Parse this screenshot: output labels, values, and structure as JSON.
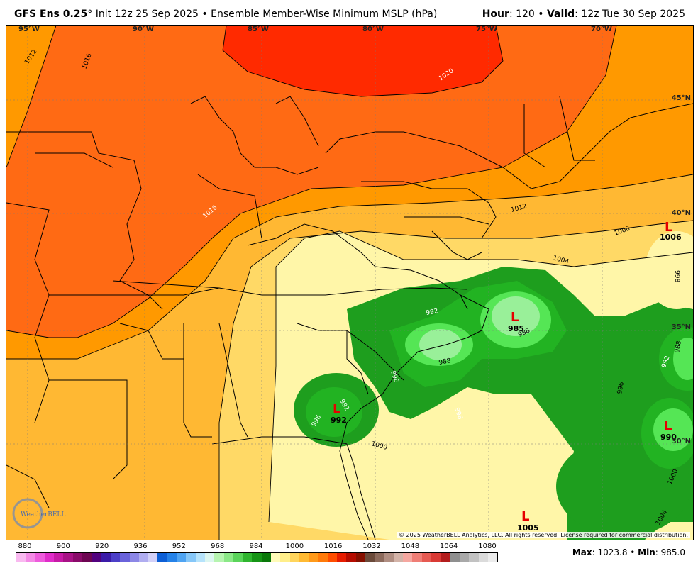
{
  "header": {
    "model": "GFS Ens 0.25",
    "degree_mark": "°",
    "init": " Init 12z 25 Sep 2025",
    "separator": " • ",
    "product": "Ensemble Member-Wise Minimum MSLP (hPa)",
    "hour_label": "Hour",
    "hour_value": ": 120 • ",
    "valid_label": "Valid",
    "valid_value": ": 12z Tue 30 Sep 2025"
  },
  "axes": {
    "longitudes": [
      "95°W",
      "90°W",
      "85°W",
      "80°W",
      "75°W",
      "70°W"
    ],
    "latitudes": [
      "45°N",
      "40°N",
      "35°N",
      "30°N"
    ]
  },
  "lows": [
    {
      "symbol": "L",
      "value": "1006"
    },
    {
      "symbol": "L",
      "value": "985"
    },
    {
      "symbol": "L",
      "value": "992"
    },
    {
      "symbol": "L",
      "value": "990"
    },
    {
      "symbol": "L",
      "value": "1005"
    }
  ],
  "contour_labels": [
    "1012",
    "1016",
    "1020",
    "1016",
    "1012",
    "1008",
    "1004",
    "1000",
    "996",
    "992",
    "988",
    "988",
    "996",
    "992",
    "996",
    "1000",
    "1004",
    "996",
    "988",
    "992",
    "998"
  ],
  "copyright": "© 2025 WeatherBELL Analytics, LLC. All rights reserved. License required for commercial distribution.",
  "logo_text": "WeatherBELL",
  "colorbar": {
    "labels": [
      "880",
      "900",
      "920",
      "936",
      "952",
      "968",
      "984",
      "1000",
      "1016",
      "1032",
      "1048",
      "1064",
      "1080"
    ],
    "colors": [
      "#f9b9f0",
      "#f48ae6",
      "#ee5bdc",
      "#e02cc9",
      "#c71aa6",
      "#a81286",
      "#8a0b6a",
      "#6d0652",
      "#52027e",
      "#3b1ba8",
      "#4c3fc8",
      "#6a63db",
      "#8c87e6",
      "#b0adf0",
      "#d2d0f8",
      "#0d5fd6",
      "#2582e8",
      "#4fa4f2",
      "#86c7f8",
      "#b6e3fb",
      "#dcf6f0",
      "#b6f4b0",
      "#8be887",
      "#5ad45a",
      "#2fb52f",
      "#169416",
      "#0a780a",
      "#fffbb8",
      "#ffee8a",
      "#ffd55c",
      "#ffba33",
      "#ff9a1a",
      "#ff7a0a",
      "#ff4d00",
      "#e61c00",
      "#b50c00",
      "#861000",
      "#6b4a3a",
      "#8c6a5c",
      "#b08e82",
      "#d3b3a8",
      "#f5a7a0",
      "#ef7e76",
      "#e65a52",
      "#d93a35",
      "#b31d1d",
      "#8f8f8f",
      "#a9a9a9",
      "#c2c2c2",
      "#dbdbdb",
      "#ececec"
    ]
  },
  "stats": {
    "max_label": "Max",
    "max_value": ": 1023.8 • ",
    "min_label": "Min",
    "min_value": ": 985.0"
  },
  "colors": {
    "c1020": "#ff2a00",
    "c1016": "#ff6a14",
    "c1012": "#ff9900",
    "c1008": "#ffb833",
    "c1004": "#ffd966",
    "c1000": "#fff6a8",
    "c996": "#1e9e1e",
    "c992": "#22b322",
    "c988": "#55e655",
    "c984": "#99f099",
    "low_symbol": "#e60000"
  }
}
